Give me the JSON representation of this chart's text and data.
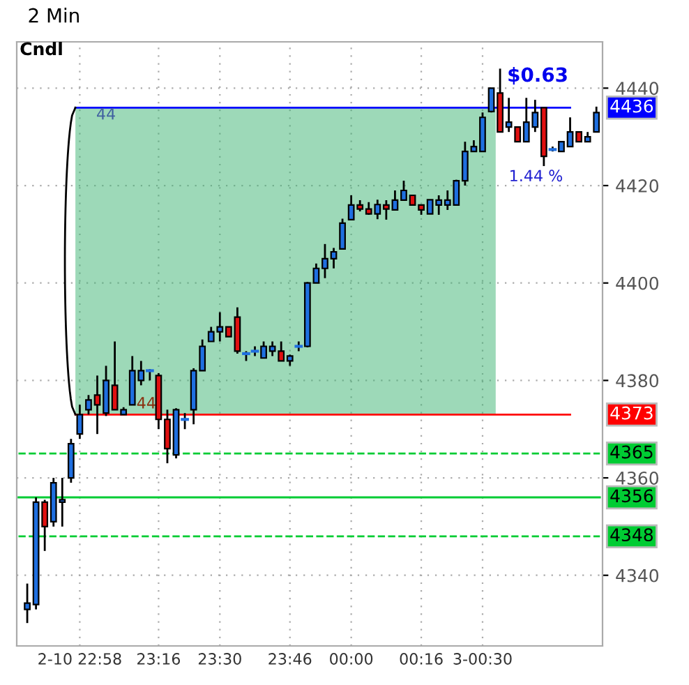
{
  "chart_data": {
    "type": "candlestick",
    "title": "2 Min",
    "categories": [
      null,
      null,
      null,
      null,
      null,
      null,
      "2-10 22:58",
      null,
      null,
      null,
      null,
      null,
      null,
      null,
      null,
      "23:16",
      null,
      null,
      null,
      null,
      null,
      null,
      "23:30",
      null,
      null,
      null,
      null,
      null,
      null,
      null,
      "23:46",
      null,
      null,
      null,
      null,
      null,
      null,
      "00:00",
      null,
      null,
      null,
      null,
      null,
      null,
      null,
      "00:16",
      null,
      null,
      null,
      null,
      null,
      null,
      "3-00:30",
      null,
      null,
      null,
      null,
      null,
      null,
      null,
      null,
      null,
      null,
      null,
      null,
      null
    ],
    "ohlc": [
      [
        4333,
        4338.3,
        4330.2,
        4334.3
      ],
      [
        4334,
        4356,
        4333,
        4355
      ],
      [
        4355,
        4355.5,
        4345,
        4350
      ],
      [
        4351,
        4360,
        4350,
        4359
      ],
      [
        4355,
        4360,
        4350,
        4355.5
      ],
      [
        4360,
        4368,
        4359,
        4367
      ],
      [
        4369,
        4375,
        4368,
        4373
      ],
      [
        4374,
        4377,
        4373,
        4376
      ],
      [
        4377,
        4381,
        4369,
        4375
      ],
      [
        4373.3,
        4383,
        4372.7,
        4380
      ],
      [
        4379,
        4388,
        4374,
        4374
      ],
      [
        4373,
        4374.5,
        4373,
        4374
      ],
      [
        4375,
        4385,
        4375,
        4382
      ],
      [
        4380,
        4384,
        4379,
        4382
      ],
      [
        4382,
        4382.3,
        4380,
        4382
      ],
      [
        4381,
        4381.5,
        4370,
        4372
      ],
      [
        4372,
        4374,
        4363,
        4366
      ],
      [
        4364.7,
        4374.3,
        4364,
        4374
      ],
      [
        4372,
        4373.3,
        4370,
        4372.3
      ],
      [
        4374,
        4382.5,
        4371,
        4382
      ],
      [
        4382,
        4388.4,
        4382,
        4387
      ],
      [
        4388,
        4391,
        4388,
        4390
      ],
      [
        4390,
        4394,
        4388,
        4391
      ],
      [
        4391,
        4391,
        4389,
        4389
      ],
      [
        4393,
        4395,
        4385.5,
        4386
      ],
      [
        4385.5,
        4386,
        4384,
        4385.5
      ],
      [
        4386,
        4387,
        4385,
        4386
      ],
      [
        4384.6,
        4388,
        4384.5,
        4387
      ],
      [
        4386,
        4388,
        4385,
        4387
      ],
      [
        4386,
        4388,
        4384,
        4384
      ],
      [
        4384,
        4385.3,
        4383,
        4385
      ],
      [
        4387,
        4388,
        4386,
        4387
      ],
      [
        4387,
        4400.2,
        4386.8,
        4400
      ],
      [
        4400,
        4404,
        4400,
        4403
      ],
      [
        4403,
        4408,
        4401,
        4405
      ],
      [
        4405,
        4407.2,
        4403,
        4406.4
      ],
      [
        4407,
        4413.2,
        4407,
        4412.3
      ],
      [
        4413,
        4418,
        4413,
        4416
      ],
      [
        4416,
        4417,
        4414.7,
        4415.2
      ],
      [
        4415.2,
        4416.6,
        4414,
        4414.2
      ],
      [
        4414.2,
        4417.1,
        4413.1,
        4416.1
      ],
      [
        4416,
        4417,
        4413,
        4415.2
      ],
      [
        4415,
        4419,
        4415,
        4417
      ],
      [
        4417,
        4421,
        4417,
        4419
      ],
      [
        4418,
        4418,
        4416,
        4416
      ],
      [
        4416,
        4416,
        4414,
        4415
      ],
      [
        4414.2,
        4417.1,
        4414.2,
        4417.1
      ],
      [
        4416,
        4418,
        4414,
        4417
      ],
      [
        4416,
        4419,
        4415,
        4417
      ],
      [
        4416,
        4421.2,
        4416,
        4421
      ],
      [
        4421,
        4429,
        4420,
        4427
      ],
      [
        4427,
        4429.3,
        4427,
        4428
      ],
      [
        4427,
        4435,
        4427,
        4434
      ],
      [
        4435.2,
        4440,
        4435,
        4440
      ],
      [
        4439,
        4444,
        4431,
        4431
      ],
      [
        4432,
        4438,
        4431,
        4433
      ],
      [
        4432,
        4432,
        4429,
        4429
      ],
      [
        4429,
        4438,
        4429,
        4433
      ],
      [
        4432,
        4437.6,
        4431,
        4435
      ],
      [
        4436,
        4436,
        4424,
        4426
      ],
      [
        4427.4,
        4428,
        4427,
        4427.4
      ],
      [
        4427,
        4429,
        4427,
        4429
      ],
      [
        4428,
        4434,
        4428,
        4431
      ],
      [
        4431,
        4431,
        4429,
        4429
      ],
      [
        4429,
        4431,
        4429,
        4430
      ],
      [
        4431,
        4436.2,
        4431,
        4435
      ]
    ],
    "colors": [
      "#1f6fe0",
      "#1f6fe0",
      "#e01010",
      "#1f6fe0",
      "#1f6fe0",
      "#1f6fe0",
      "#1f6fe0",
      "#1f6fe0",
      "#e01010",
      "#1f6fe0",
      "#e01010",
      "#1f6fe0",
      "#1f6fe0",
      "#1f6fe0",
      "#1f6fe0",
      "#e01010",
      "#e01010",
      "#1f6fe0",
      "#1f6fe0",
      "#1f6fe0",
      "#1f6fe0",
      "#1f6fe0",
      "#1f6fe0",
      "#e01010",
      "#e01010",
      "#1f6fe0",
      "#1f6fe0",
      "#1f6fe0",
      "#1f6fe0",
      "#e01010",
      "#1f6fe0",
      "#1f6fe0",
      "#1f6fe0",
      "#1f6fe0",
      "#1f6fe0",
      "#1f6fe0",
      "#1f6fe0",
      "#1f6fe0",
      "#e01010",
      "#e01010",
      "#1f6fe0",
      "#e01010",
      "#1f6fe0",
      "#1f6fe0",
      "#e01010",
      "#e01010",
      "#1f6fe0",
      "#1f6fe0",
      "#1f6fe0",
      "#1f6fe0",
      "#1f6fe0",
      "#1f6fe0",
      "#1f6fe0",
      "#1f6fe0",
      "#e01010",
      "#1f6fe0",
      "#e01010",
      "#1f6fe0",
      "#1f6fe0",
      "#e01010",
      "#1f6fe0",
      "#1f6fe0",
      "#1f6fe0",
      "#e01010",
      "#1f6fe0",
      "#1f6fe0"
    ],
    "ylim": [
      4325.5,
      4449.5
    ],
    "yticks": [
      4340,
      4360,
      4380,
      4400,
      4420,
      4440
    ],
    "grid": true,
    "legend": false,
    "ref_lines": [
      {
        "axis": "y",
        "value": 4436,
        "label": "4436",
        "color": "#0000ff",
        "line_style": "solid"
      },
      {
        "axis": "y",
        "value": 4373,
        "label": "4373",
        "color": "#ff0000",
        "line_style": "solid"
      },
      {
        "axis": "y",
        "value": 4365,
        "label": "4365",
        "color": "#00cc33",
        "line_style": "dashed"
      },
      {
        "axis": "y",
        "value": 4356,
        "label": "4356",
        "color": "#00cc33",
        "line_style": "solid"
      },
      {
        "axis": "y",
        "value": 4348,
        "label": "4348",
        "color": "#00cc33",
        "line_style": "dashed"
      }
    ],
    "bands": [
      {
        "axis": "y",
        "from": 4373,
        "to": 4436,
        "color": "#3cb371"
      }
    ],
    "annotations": [
      "Cndl",
      "44",
      "44",
      "$0.63",
      "1.44 %"
    ]
  }
}
